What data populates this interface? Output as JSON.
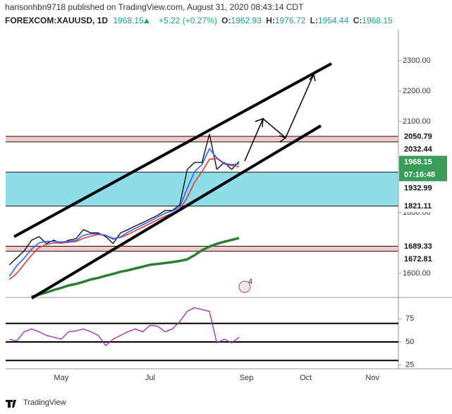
{
  "header": {
    "publisher_line": "harisonhbn9718 published on TradingView.com, August 31, 2020 08:43:14 CDT",
    "symbol": "FOREXCOM:XAUUSD, 1D",
    "last": "1968.15",
    "change": "+5.22 (+0.27%)",
    "ohlc": [
      {
        "label": "O:",
        "value": "1962.93"
      },
      {
        "label": "H:",
        "value": "1976.72"
      },
      {
        "label": "L:",
        "value": "1954.44"
      },
      {
        "label": "C:",
        "value": "1968.15"
      }
    ]
  },
  "chart_data": [
    {
      "type": "line",
      "series": [
        {
          "color": "#000000",
          "width": 1.3,
          "values": [
            1628,
            1651,
            1674,
            1709,
            1721,
            1698,
            1709,
            1698,
            1709,
            1714,
            1744,
            1733,
            1733,
            1721,
            1698,
            1733,
            1744,
            1756,
            1767,
            1779,
            1791,
            1807,
            1807,
            1826,
            1942,
            1965,
            1965,
            2058,
            1942,
            1965,
            1942,
            1968.15,
            null,
            null,
            null,
            null,
            null,
            null,
            null,
            null,
            null,
            null,
            null,
            null,
            null,
            null,
            null,
            null,
            null,
            null,
            null,
            null,
            null
          ]
        },
        {
          "color": "#e53935",
          "width": 1.6,
          "values": [
            1580,
            1600,
            1630,
            1660,
            1685,
            1695,
            1700,
            1700,
            1702,
            1705,
            1715,
            1722,
            1728,
            1725,
            1715,
            1718,
            1728,
            1740,
            1752,
            1764,
            1776,
            1788,
            1798,
            1810,
            1850,
            1900,
            1935,
            1975,
            1978,
            1960,
            1955,
            1951,
            null,
            null,
            null,
            null,
            null,
            null,
            null,
            null,
            null,
            null,
            null,
            null,
            null,
            null,
            null,
            null,
            null,
            null,
            null,
            null,
            null
          ]
        },
        {
          "color": "#2962ff",
          "width": 1.6,
          "values": [
            1590,
            1625,
            1650,
            1680,
            1700,
            1705,
            1705,
            1703,
            1705,
            1708,
            1725,
            1730,
            1730,
            1725,
            1712,
            1720,
            1735,
            1748,
            1760,
            1772,
            1785,
            1798,
            1805,
            1818,
            1880,
            1935,
            1958,
            2010,
            1980,
            1962,
            1958,
            1960,
            null,
            null,
            null,
            null,
            null,
            null,
            null,
            null,
            null,
            null,
            null,
            null,
            null,
            null,
            null,
            null,
            null,
            null,
            null,
            null,
            null
          ]
        },
        {
          "color": "#2e7d32",
          "width": 3.5,
          "values": [
            null,
            null,
            null,
            1523,
            1530,
            1537,
            1545,
            1552,
            1560,
            1565,
            1572,
            1580,
            1585,
            1592,
            1598,
            1605,
            1610,
            1616,
            1622,
            1628,
            1631,
            1634,
            1637,
            1641,
            1646,
            1660,
            1676,
            1688,
            1697,
            1704,
            1710,
            1716,
            null,
            null,
            null,
            null,
            null,
            null,
            null,
            null,
            null,
            null,
            null,
            null,
            null,
            null,
            null,
            null,
            null,
            null,
            null,
            null,
            null
          ]
        }
      ],
      "ylim": [
        1523,
        2402
      ],
      "yticks": [
        {
          "value": 1600,
          "label": "1600.00"
        },
        {
          "value": 1800,
          "label": "1800.00"
        },
        {
          "value": 2100,
          "label": "2100.00"
        },
        {
          "value": 2200,
          "label": "2200.00"
        },
        {
          "value": 2300,
          "label": "2300.00"
        }
      ],
      "zones": [
        {
          "color": "#f6c9c9",
          "top": 2050.79,
          "bottom": 2032.44
        },
        {
          "color": "#8fdde8",
          "top": 1932.99,
          "bottom": 1821.11
        },
        {
          "color": "#f6c9c9",
          "top": 1689.33,
          "bottom": 1672.81
        }
      ],
      "last_color": "#3a9c5a",
      "countdown": "07:16:48",
      "event_badge": "4"
    },
    {
      "type": "line",
      "categories": [
        null,
        null,
        null,
        null,
        null,
        null,
        null,
        "May",
        null,
        null,
        null,
        null,
        null,
        null,
        null,
        null,
        null,
        null,
        null,
        "Jul",
        null,
        null,
        null,
        null,
        null,
        null,
        null,
        null,
        null,
        null,
        null,
        null,
        "Sep",
        null,
        null,
        null,
        null,
        null,
        null,
        null,
        "Oct",
        null,
        null,
        null,
        null,
        null,
        null,
        null,
        null,
        "Nov",
        null,
        null,
        null
      ],
      "series": [
        {
          "color": "#9c27b0",
          "width": 1.3,
          "values": [
            53,
            51,
            61,
            64,
            61,
            57,
            55,
            53,
            61,
            62,
            64,
            61,
            57,
            46,
            53,
            57,
            61,
            64,
            61,
            68,
            67,
            61,
            64,
            72,
            83,
            87,
            85,
            83,
            49,
            53,
            49,
            55,
            null,
            null,
            null,
            null,
            null,
            null,
            null,
            null,
            null,
            null,
            null,
            null,
            null,
            null,
            null,
            null,
            null,
            null,
            null,
            null,
            null
          ]
        }
      ],
      "ylim": [
        21,
        95
      ],
      "yticks": [
        25,
        50,
        75
      ],
      "levels": [
        30,
        50,
        70
      ]
    }
  ],
  "footer": {
    "brand": "TradingView"
  }
}
